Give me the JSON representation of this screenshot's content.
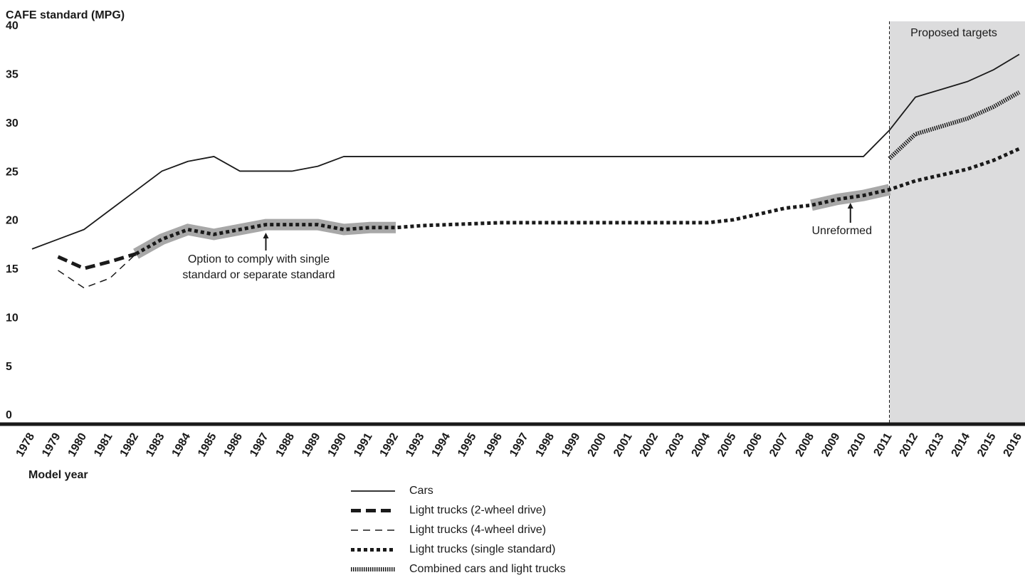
{
  "chart_data": {
    "type": "line",
    "y_label": "CAFE standard (MPG)",
    "x_label": "Model year",
    "x": [
      1978,
      1979,
      1980,
      1981,
      1982,
      1983,
      1984,
      1985,
      1986,
      1987,
      1988,
      1989,
      1990,
      1991,
      1992,
      1993,
      1994,
      1995,
      1996,
      1997,
      1998,
      1999,
      2000,
      2001,
      2002,
      2003,
      2004,
      2005,
      2006,
      2007,
      2008,
      2009,
      2010,
      2011,
      2012,
      2013,
      2014,
      2015,
      2016
    ],
    "xlim": [
      1978,
      2016
    ],
    "ylim": [
      0,
      40
    ],
    "yticks": [
      0,
      5,
      10,
      15,
      20,
      25,
      30,
      35,
      40
    ],
    "shaded_region": {
      "from": 2011,
      "label": "Proposed targets"
    },
    "highlights": [
      [
        1982,
        1992
      ],
      [
        2008,
        2011
      ]
    ],
    "annotations": [
      {
        "lines": [
          "Option to comply with single",
          "standard or separate standard"
        ],
        "x": 1987
      },
      {
        "lines": [
          "Unreformed"
        ],
        "x": 2009.5
      }
    ],
    "series": [
      {
        "name": "Cars",
        "color": "#1a1a1a",
        "style": "solid",
        "values": [
          18,
          19,
          20,
          22,
          24,
          26,
          27,
          27.5,
          26,
          26,
          26,
          26.5,
          27.5,
          27.5,
          27.5,
          27.5,
          27.5,
          27.5,
          27.5,
          27.5,
          27.5,
          27.5,
          27.5,
          27.5,
          27.5,
          27.5,
          27.5,
          27.5,
          27.5,
          27.5,
          27.5,
          27.5,
          27.5,
          30.2,
          33.6,
          34.4,
          35.2,
          36.4,
          38
        ]
      },
      {
        "name": "Light trucks (2-wheel drive)",
        "color": "#1a1a1a",
        "style": "long-dash",
        "values": [
          null,
          17.2,
          16,
          16.7,
          17.5,
          null,
          null,
          null,
          null,
          null,
          null,
          null,
          null,
          null,
          null,
          null,
          null,
          null,
          null,
          null,
          null,
          null,
          null,
          null,
          null,
          null,
          null,
          null,
          null,
          null,
          null,
          null,
          null,
          null,
          null,
          null,
          null,
          null,
          null
        ]
      },
      {
        "name": "Light trucks (4-wheel drive)",
        "color": "#1a1a1a",
        "style": "thin-dash",
        "values": [
          null,
          15.8,
          14,
          15,
          17.5,
          null,
          null,
          null,
          null,
          null,
          null,
          null,
          null,
          null,
          null,
          null,
          null,
          null,
          null,
          null,
          null,
          null,
          null,
          null,
          null,
          null,
          null,
          null,
          null,
          null,
          null,
          null,
          null,
          null,
          null,
          null,
          null,
          null,
          null
        ]
      },
      {
        "name": "Light trucks (single standard)",
        "color": "#1a1a1a",
        "style": "dot",
        "values": [
          null,
          null,
          null,
          null,
          17.5,
          19,
          20,
          19.5,
          20,
          20.5,
          20.5,
          20.5,
          20,
          20.2,
          20.2,
          20.4,
          20.5,
          20.6,
          20.7,
          20.7,
          20.7,
          20.7,
          20.7,
          20.7,
          20.7,
          20.7,
          20.7,
          21,
          21.6,
          22.2,
          22.5,
          23.1,
          23.5,
          24.1,
          25,
          25.6,
          26.2,
          27.1,
          28.3
        ]
      },
      {
        "name": "Combined cars and light trucks",
        "color": "#1a1a1a",
        "style": "fine-dot",
        "values": [
          null,
          null,
          null,
          null,
          null,
          null,
          null,
          null,
          null,
          null,
          null,
          null,
          null,
          null,
          null,
          null,
          null,
          null,
          null,
          null,
          null,
          null,
          null,
          null,
          null,
          null,
          null,
          null,
          null,
          null,
          null,
          null,
          null,
          27.3,
          29.8,
          30.6,
          31.4,
          32.6,
          34.1
        ]
      }
    ]
  }
}
